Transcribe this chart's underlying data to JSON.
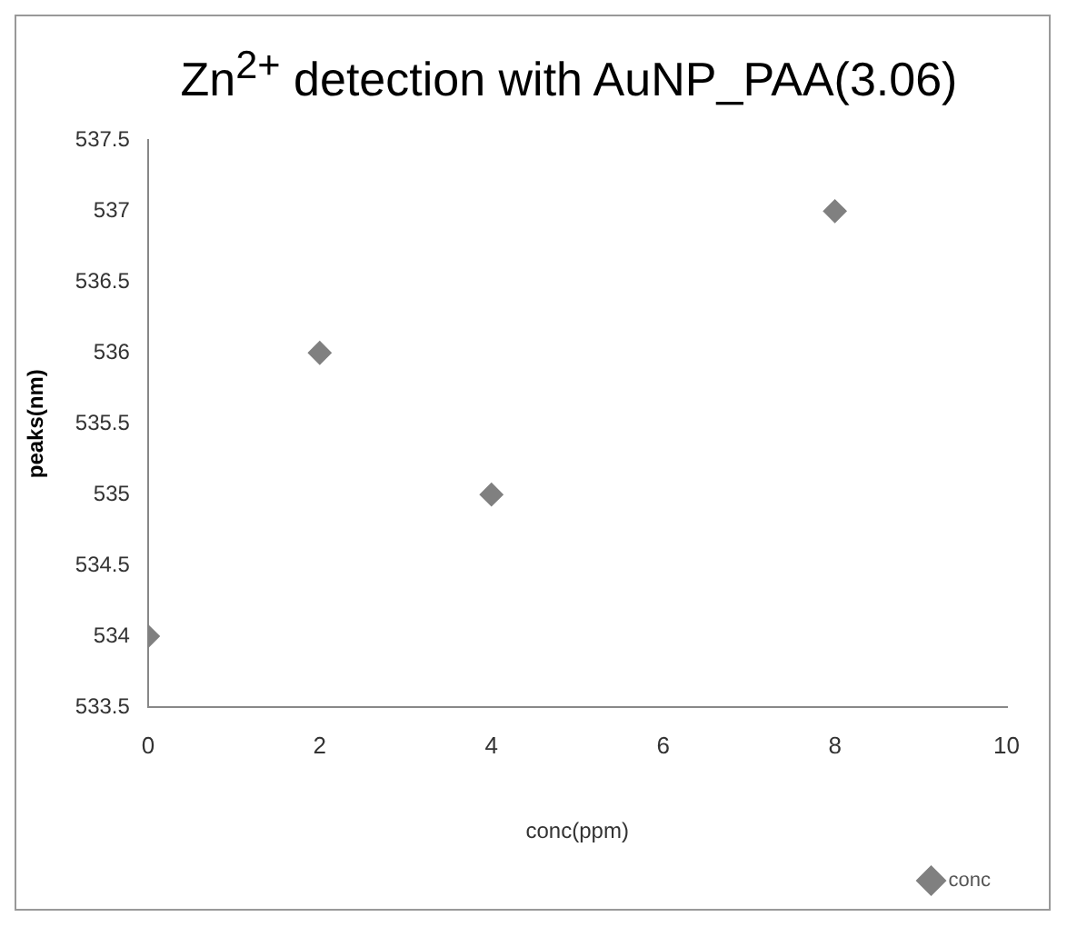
{
  "chart_data": {
    "type": "scatter",
    "title": "Zn$^{2+}$ detection with AuNP_PAA(3.06)",
    "xlabel": "conc(ppm)",
    "ylabel": "peaks(nm)",
    "x": [
      0,
      2,
      4,
      8
    ],
    "series": [
      {
        "name": "conc",
        "color": "#808080",
        "values": [
          534,
          536,
          535,
          537
        ]
      }
    ],
    "xlim": [
      0,
      10
    ],
    "xticks": [
      0,
      2,
      4,
      6,
      8,
      10
    ],
    "ylim": [
      533.5,
      537.5
    ],
    "yticks": [
      533.5,
      534,
      534.5,
      535,
      535.5,
      536,
      536.5,
      537,
      537.5
    ],
    "grid": false,
    "legend": "bottom right",
    "marker": "diamond"
  }
}
